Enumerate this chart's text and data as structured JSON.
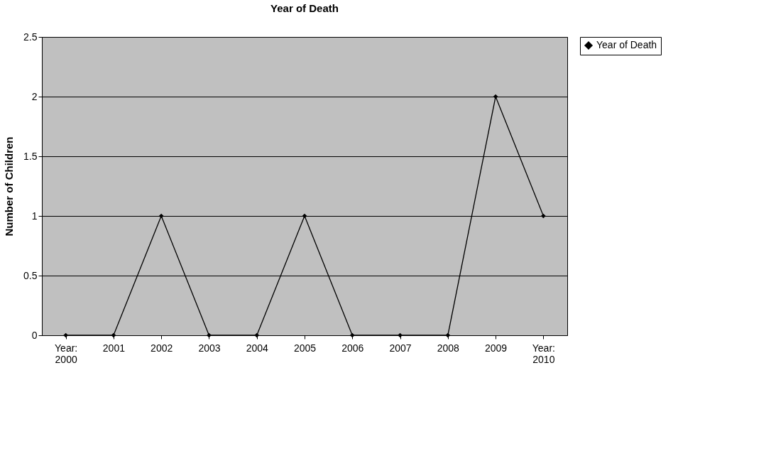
{
  "chart_data": {
    "type": "line",
    "title": "Year of Death",
    "ylabel": "Number of Children",
    "categories": [
      "Year: 2000",
      "2001",
      "2002",
      "2003",
      "2004",
      "2005",
      "2006",
      "2007",
      "2008",
      "2009",
      "Year: 2010"
    ],
    "series": [
      {
        "name": "Year of Death",
        "color": "#000000",
        "values": [
          0,
          0,
          1,
          0,
          0,
          1,
          0,
          0,
          0,
          2,
          1
        ]
      }
    ],
    "ylim": [
      0,
      2.5
    ],
    "yticks": [
      0,
      0.5,
      1,
      1.5,
      2,
      2.5
    ],
    "grid": "y",
    "legend": "right",
    "marker": "diamond",
    "line_style": "solid"
  }
}
